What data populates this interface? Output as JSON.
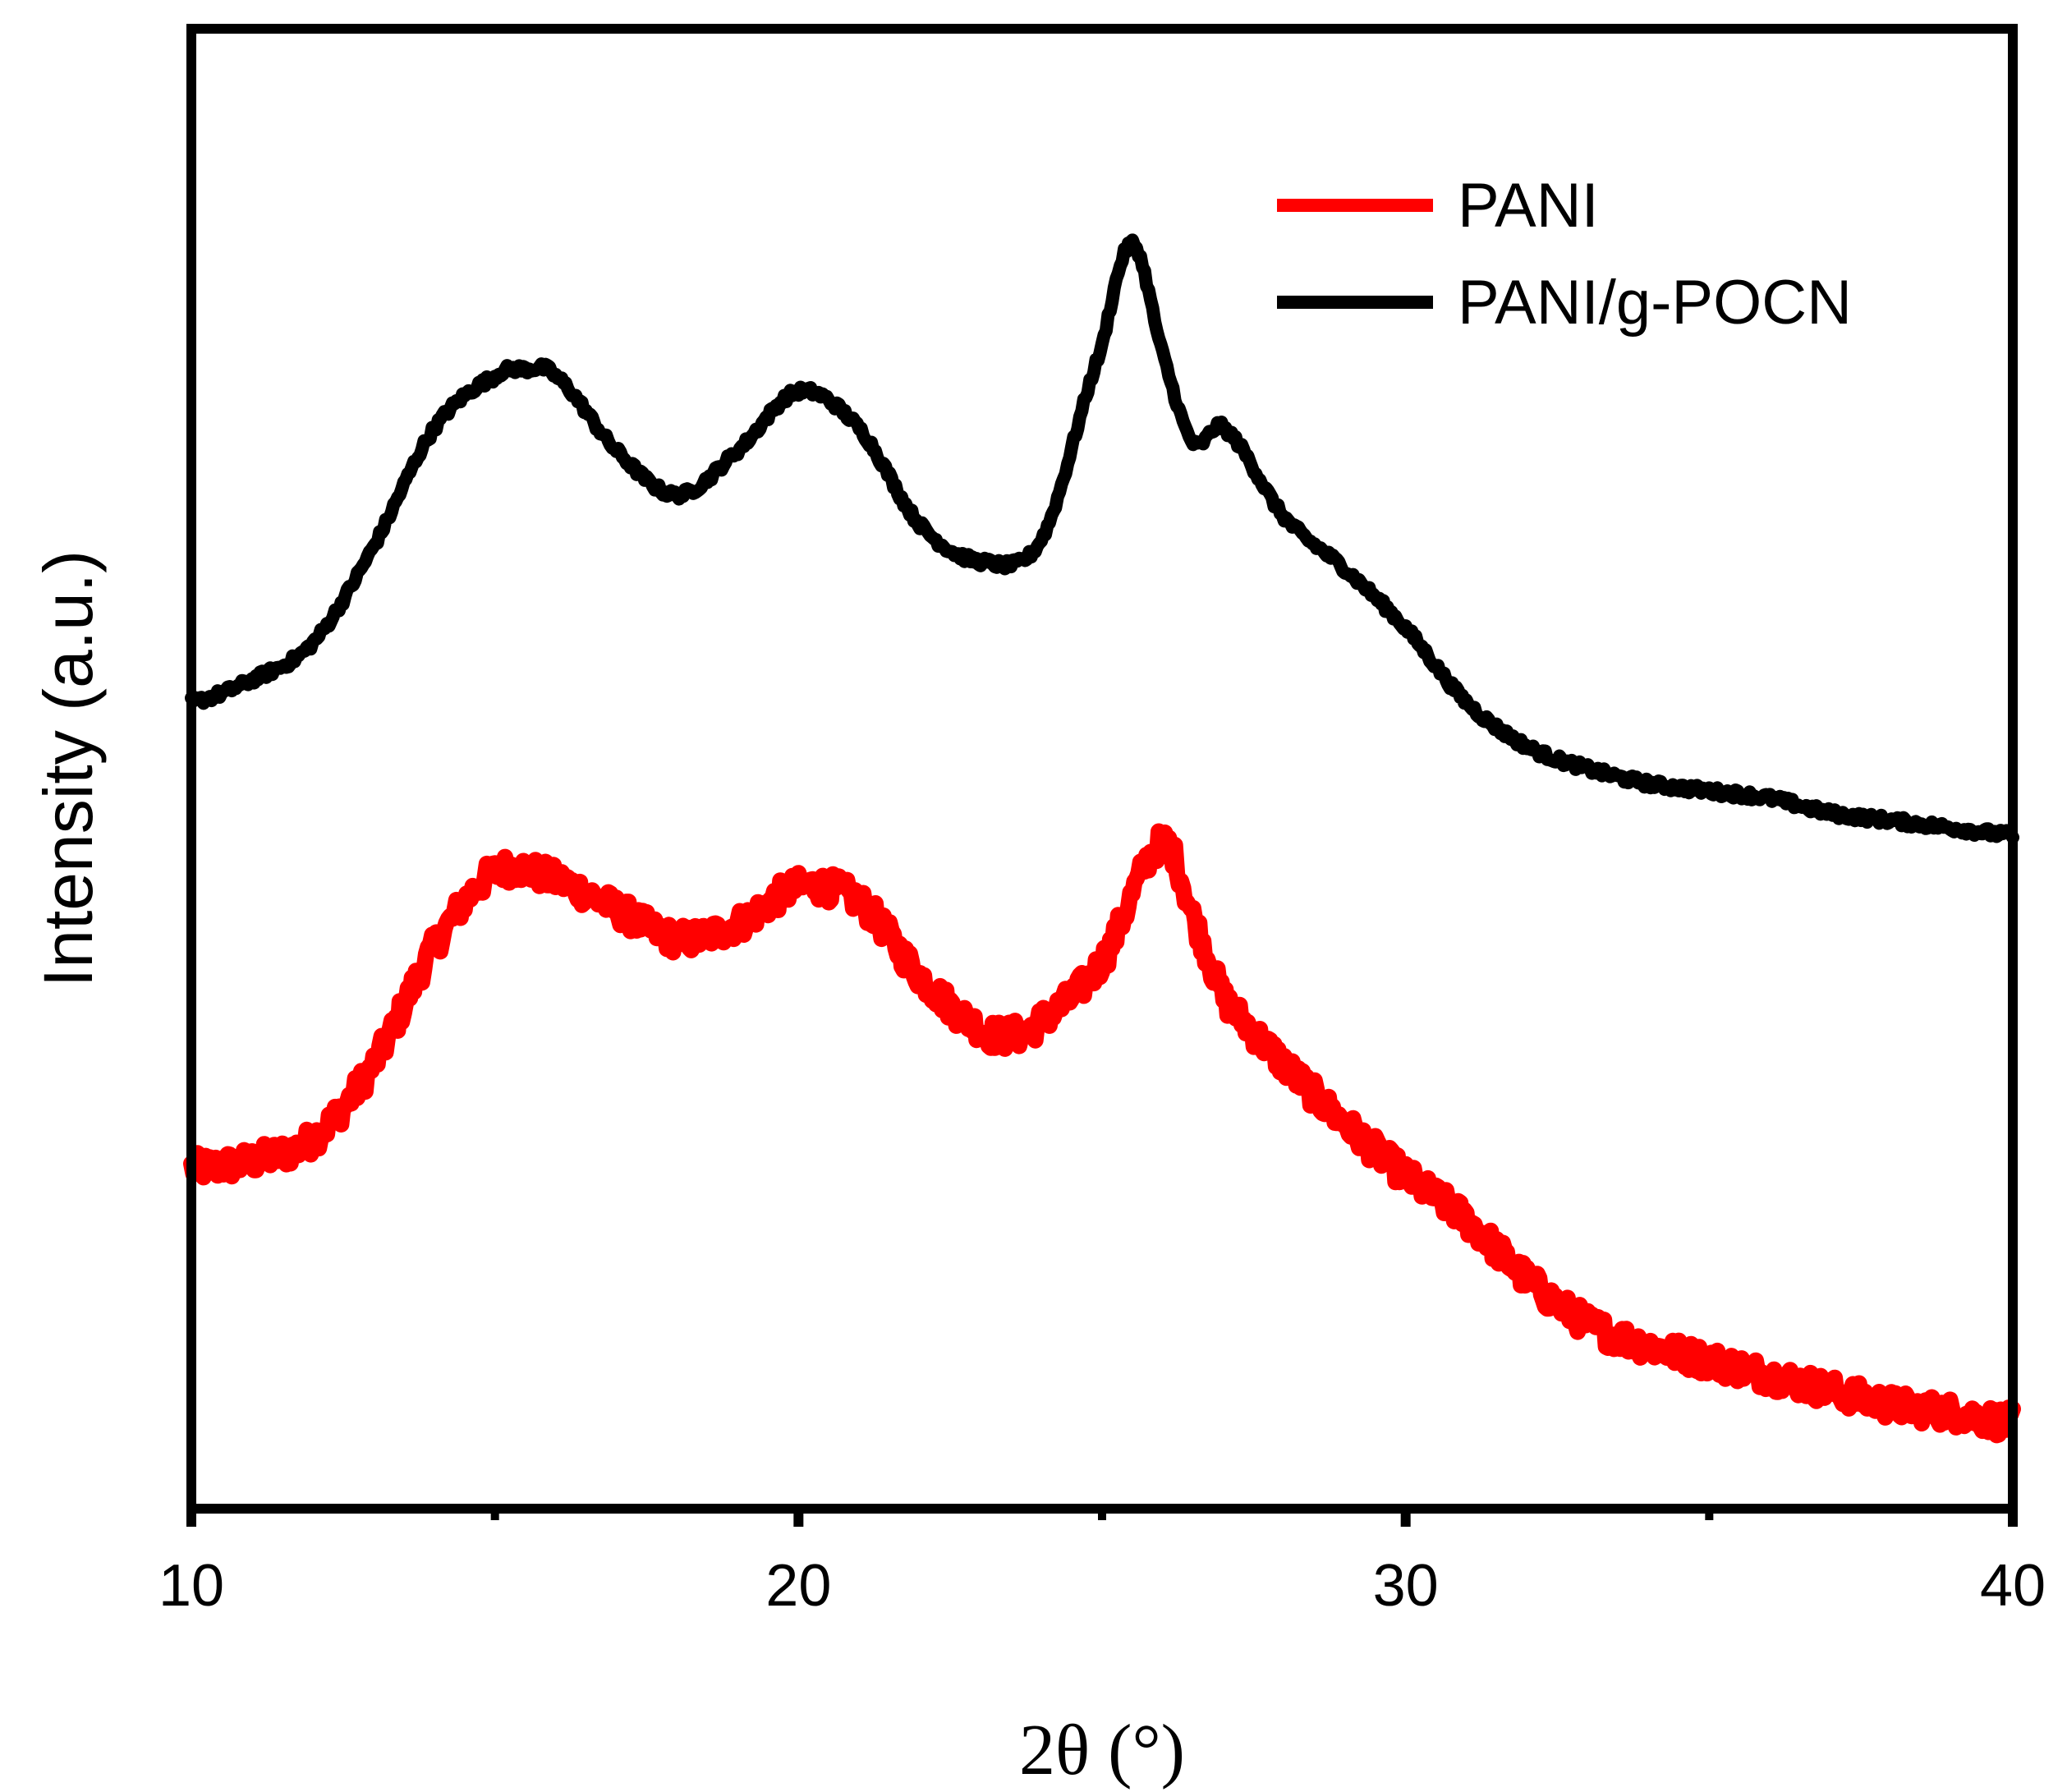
{
  "chart_data": {
    "type": "line",
    "title": "",
    "xlabel": "2θ (°)",
    "ylabel": "Intensity (a.u.)",
    "xlim": [
      10,
      40
    ],
    "ylim": [
      0,
      100
    ],
    "x_ticks": [
      10,
      20,
      30,
      40
    ],
    "x_tick_labels": [
      "10",
      "20",
      "30",
      "40"
    ],
    "y_ticks_shown": false,
    "grid": false,
    "legend_position": "top-right",
    "series": [
      {
        "name": "PANI",
        "color": "#ff0000",
        "x": [
          10,
          11,
          12,
          13,
          14,
          15,
          16,
          17,
          18,
          19,
          20,
          21,
          22,
          23,
          23.5,
          24,
          25,
          26,
          26.5,
          27,
          28,
          29,
          30,
          31,
          32,
          33,
          34,
          35,
          36,
          37,
          38,
          39,
          40
        ],
        "y": [
          23,
          23.5,
          25,
          30,
          38,
          43,
          42.5,
          40.5,
          38.5,
          39.5,
          42,
          41,
          36,
          32.5,
          32,
          33,
          37,
          45,
          40,
          34.5,
          30,
          26,
          22.5,
          19.5,
          15.5,
          12.5,
          11,
          10,
          9,
          8,
          7,
          6.5,
          5.8
        ],
        "noise": 1.0
      },
      {
        "name": "PANI/g-POCN",
        "color": "#000000",
        "x": [
          10,
          11,
          12,
          13,
          14,
          15,
          15.5,
          16,
          17,
          18,
          19,
          20,
          21,
          22,
          23,
          24,
          25,
          25.5,
          26,
          26.5,
          27,
          28,
          29,
          30,
          31,
          32,
          33,
          34,
          35,
          36,
          37,
          38,
          39,
          40
        ],
        "y": [
          54.5,
          56,
          58.5,
          65,
          73,
          76.5,
          77,
          76.5,
          71.5,
          68.5,
          71.5,
          75.5,
          73,
          66.5,
          64,
          65.5,
          78.5,
          85.5,
          78,
          72,
          73,
          67,
          63.5,
          59.5,
          54.5,
          51.5,
          50,
          49,
          48.5,
          48,
          47,
          46.5,
          46,
          45.5
        ],
        "noise": 0.3
      }
    ]
  }
}
